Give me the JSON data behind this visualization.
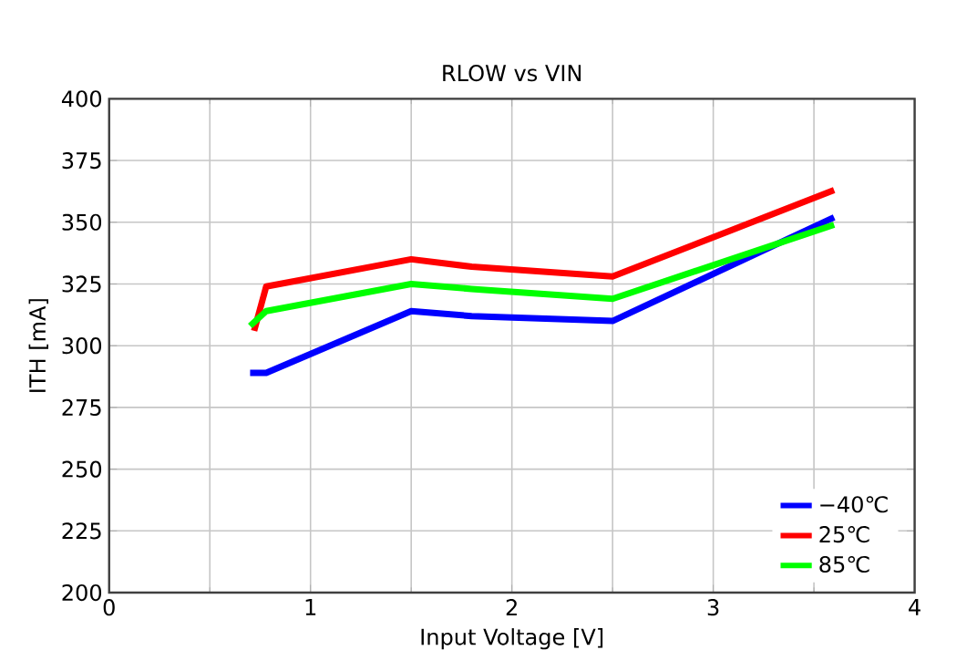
{
  "chart_data": {
    "type": "line",
    "title": "RLOW vs VIN",
    "xlabel": "Input Voltage [V]",
    "ylabel": "ITH [mA]",
    "xlim": [
      0,
      4
    ],
    "xticks": [
      0,
      1,
      2,
      3,
      4
    ],
    "ylim": [
      200,
      400
    ],
    "yticks": [
      200,
      225,
      250,
      275,
      300,
      325,
      350,
      375,
      400
    ],
    "grid": true,
    "legend": "bottom right",
    "marker": "none",
    "line_style": "solid",
    "series": [
      {
        "name": "−40℃",
        "color": "#0000ff",
        "x": [
          0.7,
          0.78,
          1.5,
          1.8,
          2.5,
          3.6
        ],
        "values": [
          289,
          289,
          314,
          312,
          310,
          352
        ]
      },
      {
        "name": "25℃",
        "color": "#ff0000",
        "x": [
          0.72,
          0.78,
          1.5,
          1.8,
          2.5,
          3.6
        ],
        "values": [
          306,
          324,
          335,
          332,
          328,
          363
        ]
      },
      {
        "name": "85℃",
        "color": "#00ff00",
        "x": [
          0.7,
          0.78,
          1.5,
          1.8,
          2.5,
          3.6
        ],
        "values": [
          308,
          314,
          325,
          323,
          319,
          349
        ]
      }
    ]
  }
}
